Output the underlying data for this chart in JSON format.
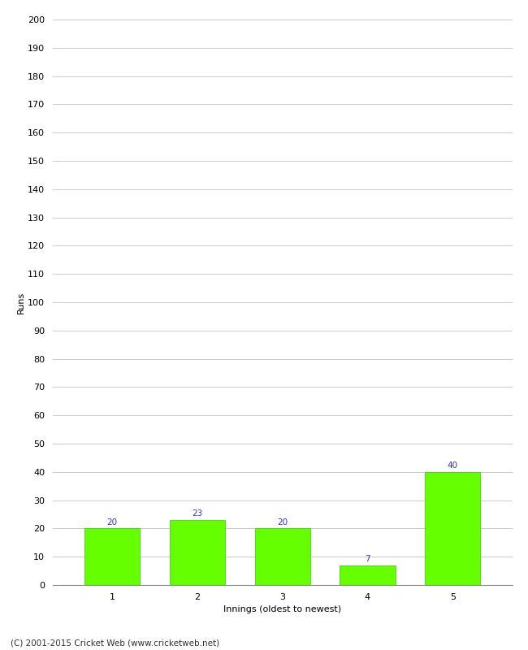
{
  "xlabel": "Innings (oldest to newest)",
  "ylabel": "Runs",
  "categories": [
    "1",
    "2",
    "3",
    "4",
    "5"
  ],
  "values": [
    20,
    23,
    20,
    7,
    40
  ],
  "bar_color": "#66ff00",
  "bar_edge_color": "#33cc00",
  "label_color": "#3333cc",
  "ylim": [
    0,
    200
  ],
  "yticks": [
    0,
    10,
    20,
    30,
    40,
    50,
    60,
    70,
    80,
    90,
    100,
    110,
    120,
    130,
    140,
    150,
    160,
    170,
    180,
    190,
    200
  ],
  "background_color": "#ffffff",
  "footer_text": "(C) 2001-2015 Cricket Web (www.cricketweb.net)",
  "label_fontsize": 7.5,
  "axis_fontsize": 8,
  "footer_fontsize": 7.5,
  "grid_color": "#cccccc",
  "spine_color": "#888888"
}
